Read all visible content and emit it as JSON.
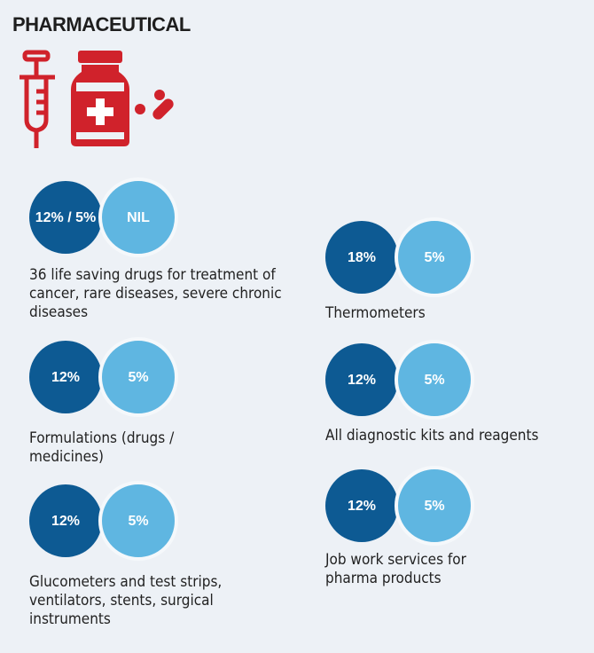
{
  "title": "PHARMACEUTICAL",
  "colors": {
    "old_rate": "#0d5a93",
    "new_rate": "#5fb6e1",
    "icon_red": "#d0222b"
  },
  "items": [
    {
      "old": "12% / 5%",
      "new": "NIL",
      "desc": "36 life saving drugs for treatment of cancer, rare diseases, severe chronic diseases"
    },
    {
      "old": "12%",
      "new": "5%",
      "desc": "Formulations (drugs / medicines)"
    },
    {
      "old": "12%",
      "new": "5%",
      "desc": "Glucometers and test strips, ventilators, stents, surgical instruments"
    },
    {
      "old": "18%",
      "new": "5%",
      "desc": "Thermometers"
    },
    {
      "old": "12%",
      "new": "5%",
      "desc": "All diagnostic kits and reagents"
    },
    {
      "old": "12%",
      "new": "5%",
      "desc": "Job work services for pharma products"
    }
  ]
}
